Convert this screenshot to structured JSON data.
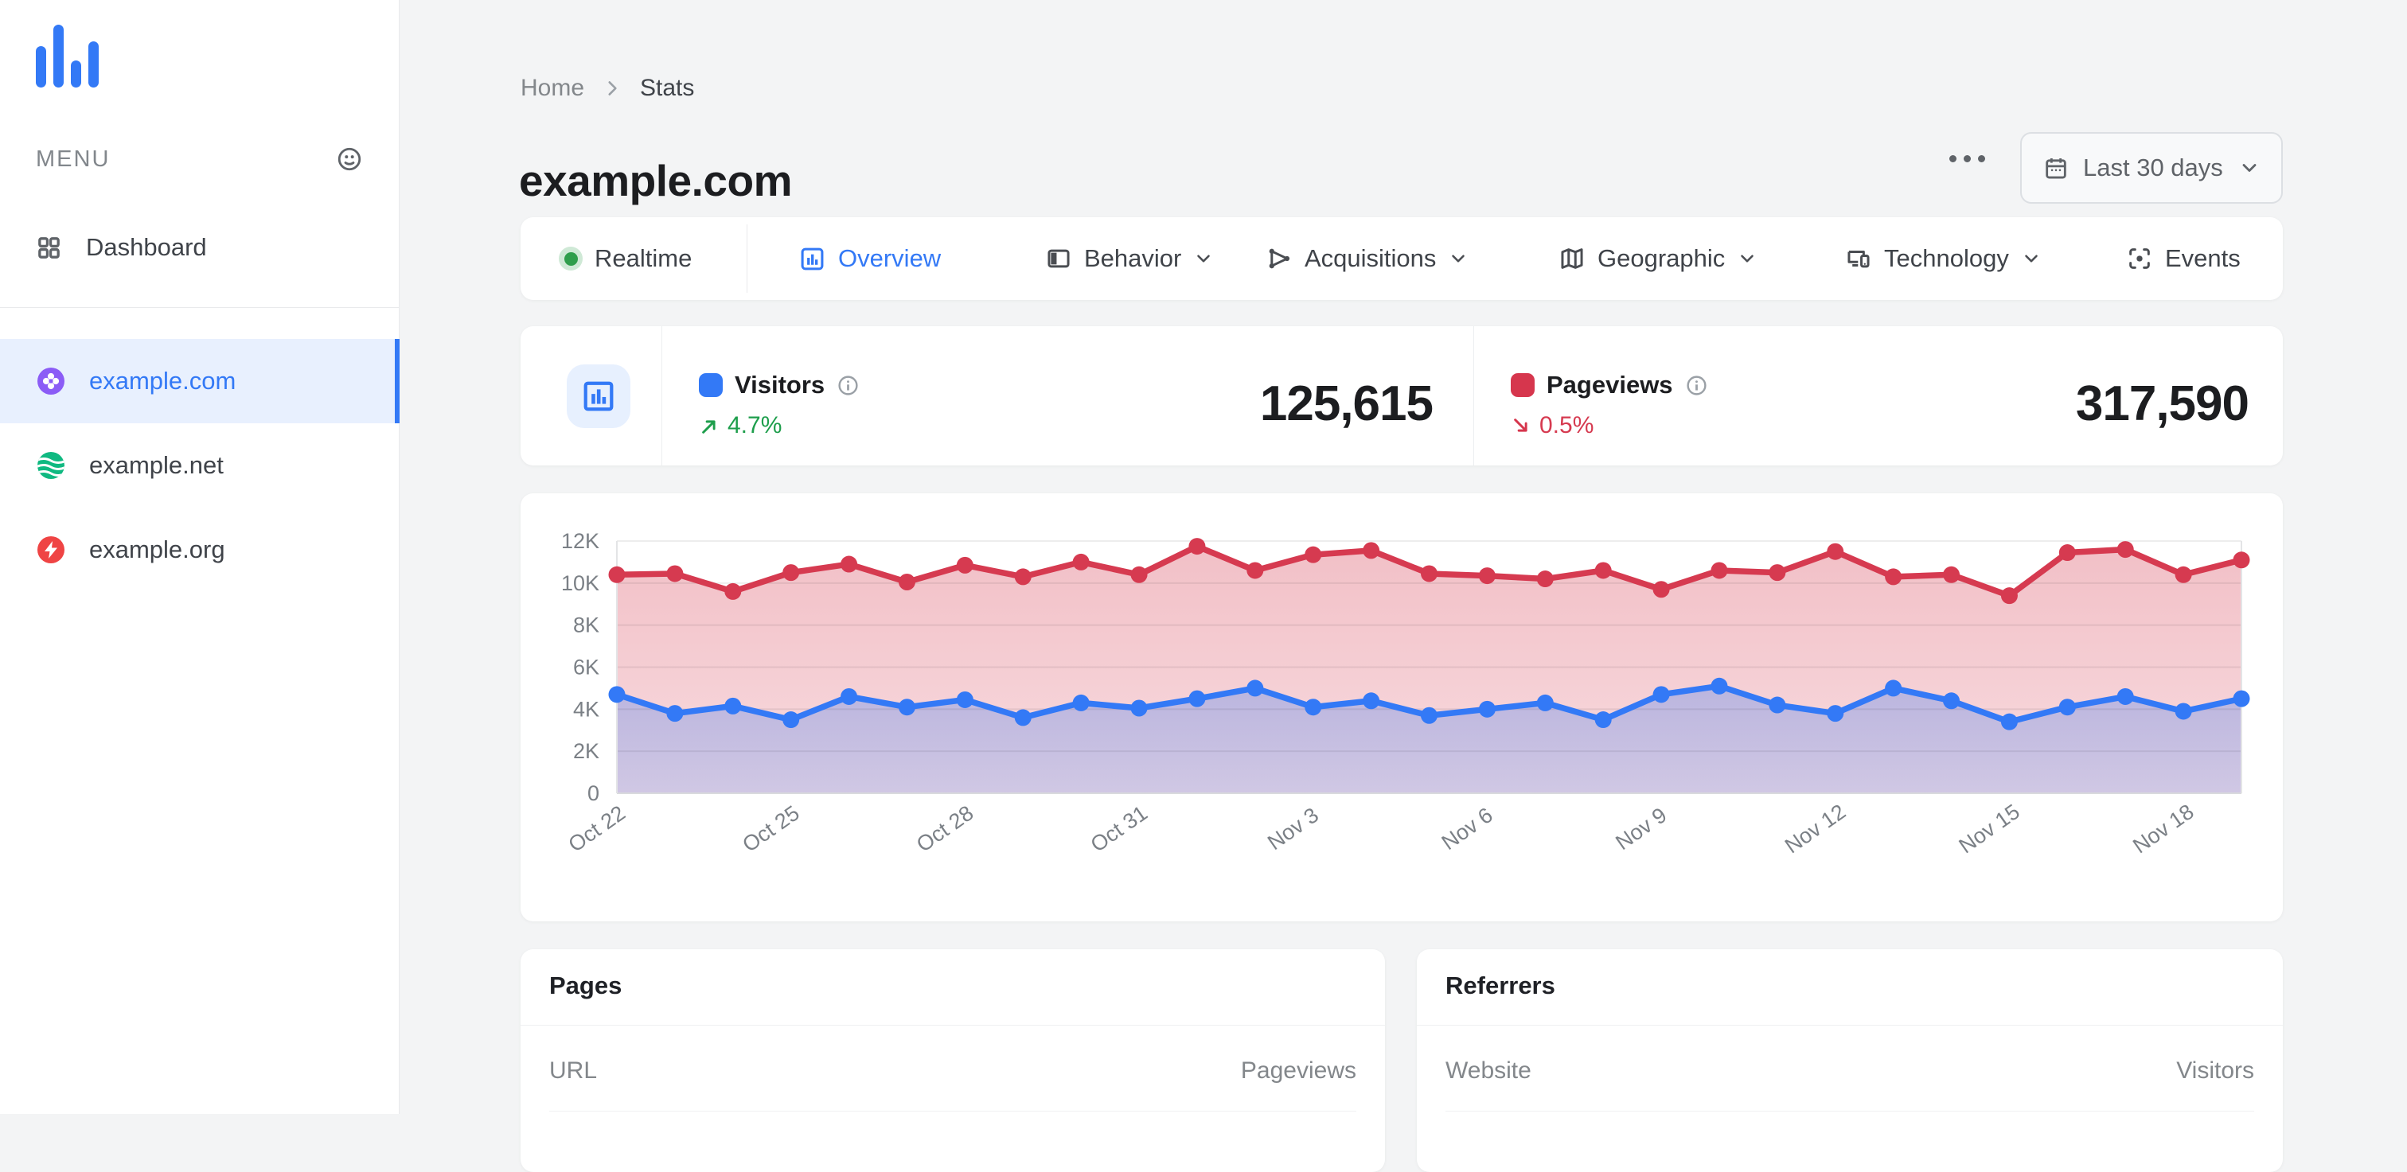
{
  "sidebar": {
    "menu_label": "MENU",
    "dashboard_label": "Dashboard",
    "sites": [
      {
        "name": "example.com",
        "active": true,
        "icon": "clover",
        "icon_color": "#8b5cf6"
      },
      {
        "name": "example.net",
        "active": false,
        "icon": "waves",
        "icon_color": "#10b981"
      },
      {
        "name": "example.org",
        "active": false,
        "icon": "lightning",
        "icon_color": "#ef4444"
      }
    ]
  },
  "header": {
    "breadcrumb_home": "Home",
    "breadcrumb_current": "Stats",
    "title": "example.com",
    "more_options_icon": "ellipsis-horizontal",
    "date_range": "Last 30 days"
  },
  "tabs": [
    {
      "label": "Realtime",
      "active": false,
      "dropdown": false,
      "icon": "live-dot"
    },
    {
      "label": "Overview",
      "active": true,
      "dropdown": false,
      "icon": "bar-chart-square"
    },
    {
      "label": "Behavior",
      "active": false,
      "dropdown": true,
      "icon": "layout-panel"
    },
    {
      "label": "Acquisitions",
      "active": false,
      "dropdown": true,
      "icon": "share-nodes"
    },
    {
      "label": "Geographic",
      "active": false,
      "dropdown": true,
      "icon": "map"
    },
    {
      "label": "Technology",
      "active": false,
      "dropdown": true,
      "icon": "devices"
    },
    {
      "label": "Events",
      "active": false,
      "dropdown": false,
      "icon": "scan-dot"
    }
  ],
  "stats_summary": {
    "visitors": {
      "label": "Visitors",
      "value": "125,615",
      "change": "4.7%",
      "direction": "up",
      "color": "#3379f6"
    },
    "pageviews": {
      "label": "Pageviews",
      "value": "317,590",
      "change": "0.5%",
      "direction": "down",
      "color": "#d6364d"
    }
  },
  "chart_data": {
    "type": "line",
    "area": true,
    "grid": true,
    "ylim": [
      0,
      12000
    ],
    "y_tick_values": [
      0,
      2000,
      4000,
      6000,
      8000,
      10000,
      12000
    ],
    "y_tick_labels": [
      "0",
      "2K",
      "4K",
      "6K",
      "8K",
      "10K",
      "12K"
    ],
    "x_tick_indices": [
      0,
      3,
      6,
      9,
      12,
      15,
      18,
      21,
      24,
      27
    ],
    "x_tick_labels": [
      "Oct 22",
      "Oct 25",
      "Oct 28",
      "Oct 31",
      "Nov 3",
      "Nov 6",
      "Nov 9",
      "Nov 12",
      "Nov 15",
      "Nov 18"
    ],
    "series": [
      {
        "name": "Pageviews",
        "color": "#d63a50",
        "values": [
          10400,
          10450,
          9600,
          10500,
          10900,
          10050,
          10850,
          10300,
          11000,
          10400,
          11750,
          10600,
          11350,
          11550,
          10450,
          10350,
          10200,
          10600,
          9700,
          10600,
          10500,
          11500,
          10300,
          10400,
          9400,
          11450,
          11600,
          10400,
          11100
        ]
      },
      {
        "name": "Visitors",
        "color": "#3379f6",
        "values": [
          4700,
          3800,
          4150,
          3500,
          4600,
          4100,
          4450,
          3600,
          4300,
          4050,
          4500,
          5000,
          4100,
          4400,
          3700,
          4000,
          4300,
          3500,
          4700,
          5100,
          4200,
          3800,
          5000,
          4400,
          3400,
          4100,
          4600,
          3900,
          4500
        ]
      }
    ]
  },
  "pages_panel": {
    "title": "Pages",
    "col_left": "URL",
    "col_right": "Pageviews"
  },
  "referrers_panel": {
    "title": "Referrers",
    "col_left": "Website",
    "col_right": "Visitors"
  },
  "colors": {
    "accent_blue": "#3379f6",
    "chart_red": "#d63a50",
    "trend_green": "#1e9e4c",
    "sidebar_active_bg": "#e8f0fe",
    "page_bg": "#f3f4f5"
  }
}
